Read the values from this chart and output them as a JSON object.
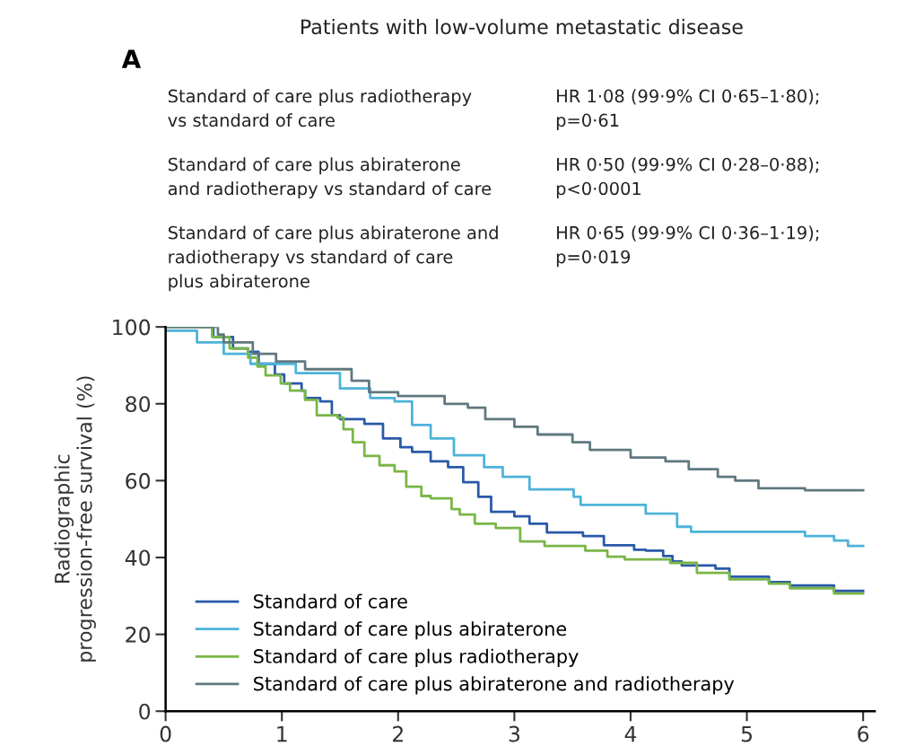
{
  "chart_data": {
    "type": "step",
    "title": "Patients with low-volume metastatic disease",
    "subtitle": "A",
    "ylabel": "Radiographic\nprogression-free survival (%)",
    "annotations": [
      "Standard of care plus radiotherapy\nvs standard of care",
      "HR 1·08 (99·9% CI 0·65–1·80);\np=0·61",
      "Standard of care plus abiraterone\nand radiotherapy vs standard of care",
      "HR 0·50 (99·9% CI 0·28–0·88);\np<0·0001",
      "Standard of care plus abiraterone and\nradiotherapy vs standard of care\nplus abiraterone",
      "HR 0·65 (99·9% CI 0·36–1·19);\np=0·019"
    ],
    "xlim": [
      0,
      6.1
    ],
    "xticks": [
      0,
      1,
      2,
      3,
      4,
      5,
      6
    ],
    "ylim": [
      0,
      100
    ],
    "yticks": [
      0,
      20,
      40,
      60,
      80,
      100
    ],
    "grid": false,
    "legend": "bottom left",
    "series": [
      {
        "name": "Standard of care",
        "color": "#2a5aa8",
        "x": [
          0,
          0.41,
          0.58,
          0.71,
          0.8,
          0.94,
          1.02,
          1.17,
          1.2,
          1.33,
          1.43,
          1.5,
          1.71,
          1.87,
          2.02,
          2.12,
          2.28,
          2.43,
          2.56,
          2.69,
          2.8,
          3.0,
          3.13,
          3.28,
          3.59,
          3.77,
          4.03,
          4.13,
          4.28,
          4.36,
          4.44,
          4.73,
          4.85,
          5.19,
          5.37,
          5.75,
          6.0
        ],
        "values": [
          100,
          97.4,
          94.4,
          93.5,
          90.4,
          87.6,
          85.3,
          83.4,
          81.5,
          80.6,
          77,
          76,
          74.8,
          71,
          68.7,
          67.5,
          65,
          63.5,
          59.6,
          55.8,
          51.9,
          50.7,
          48.8,
          46.5,
          45.6,
          43.2,
          42,
          41.8,
          40.4,
          39,
          37.9,
          37.1,
          35,
          33.6,
          32.7,
          31.3,
          31.3
        ]
      },
      {
        "name": "Standard of care plus abiraterone",
        "color": "#4db3d9",
        "x": [
          0,
          0.27,
          0.5,
          0.73,
          1.12,
          1.5,
          1.76,
          1.97,
          2.12,
          2.28,
          2.48,
          2.74,
          2.9,
          3.13,
          3.51,
          3.57,
          4.13,
          4.4,
          4.52,
          5.5,
          5.75,
          5.87,
          6.0
        ],
        "values": [
          99,
          96,
          93,
          90.4,
          88,
          84,
          81.5,
          80.6,
          74.5,
          71,
          66.6,
          63.5,
          61,
          57.7,
          55.8,
          53.7,
          51.4,
          48,
          46.7,
          45.6,
          44.4,
          43,
          43
        ]
      },
      {
        "name": "Standard of care plus radiotherapy",
        "color": "#7ab648",
        "x": [
          0,
          0.4,
          0.55,
          0.71,
          0.79,
          0.86,
          0.99,
          1.07,
          1.2,
          1.3,
          1.48,
          1.53,
          1.61,
          1.71,
          1.84,
          1.97,
          2.07,
          2.2,
          2.28,
          2.46,
          2.53,
          2.66,
          2.84,
          3.05,
          3.26,
          3.61,
          3.8,
          3.95,
          4.34,
          4.57,
          4.85,
          5.19,
          5.37,
          5.75,
          6.0
        ],
        "values": [
          100,
          97.4,
          94.4,
          92,
          89.7,
          87.4,
          85.3,
          83.4,
          81,
          77,
          76.4,
          73.4,
          70,
          66.4,
          64,
          62.4,
          58.4,
          56,
          55.4,
          52.6,
          51.2,
          48.8,
          47.7,
          44.2,
          43,
          41.8,
          40.2,
          39.5,
          38.6,
          36,
          34.3,
          33.2,
          32,
          30.6,
          30.6
        ]
      },
      {
        "name": "Standard of care plus abiraterone and radiotherapy",
        "color": "#607880",
        "x": [
          0,
          0.45,
          0.5,
          0.75,
          0.95,
          1.2,
          1.6,
          1.75,
          2.0,
          2.4,
          2.6,
          2.75,
          3.0,
          3.2,
          3.5,
          3.65,
          4.0,
          4.3,
          4.5,
          4.75,
          4.9,
          5.1,
          5.5,
          6.0
        ],
        "values": [
          100,
          98,
          96,
          93,
          91,
          89,
          86,
          83,
          82,
          80,
          79,
          76,
          74,
          72,
          70,
          68,
          66,
          65,
          63,
          61,
          60,
          58,
          57.5,
          57.5
        ]
      }
    ]
  }
}
